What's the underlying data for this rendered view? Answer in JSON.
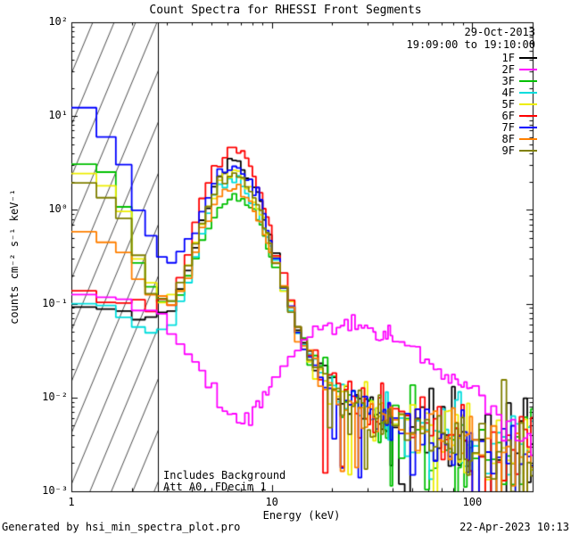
{
  "header": {
    "date": "29-Oct-2013",
    "time_range": "19:09:00 to 19:10:00"
  },
  "annotations": {
    "background": "Includes Background",
    "attenuator": "Att A0, FDecim 1"
  },
  "footer": {
    "generator": "Generated by hsi_min_spectra_plot.pro",
    "timestamp": "22-Apr-2023 10:13"
  },
  "chart_data": {
    "type": "line",
    "title": "Count Spectra for RHESSI Front Segments",
    "xlabel": "Energy (keV)",
    "ylabel": "counts cm⁻² s⁻¹ keV⁻¹",
    "x_scale": "log",
    "y_scale": "log",
    "xlim": [
      1,
      200
    ],
    "ylim": [
      0.001,
      100
    ],
    "x_ticks": [
      {
        "value": 1,
        "label": "1"
      },
      {
        "value": 10,
        "label": "10"
      },
      {
        "value": 100,
        "label": "100"
      }
    ],
    "y_ticks": [
      {
        "value": 100,
        "label": "10²"
      },
      {
        "value": 10,
        "label": "10¹"
      },
      {
        "value": 1,
        "label": "10⁰"
      },
      {
        "value": 0.1,
        "label": "10⁻¹"
      },
      {
        "value": 0.01,
        "label": "10⁻²"
      },
      {
        "value": 0.001,
        "label": "10⁻³"
      }
    ],
    "hatch_region": {
      "from": 1,
      "to": 2.7
    },
    "bins": [
      [
        1,
        10,
        0.3333
      ],
      [
        10,
        40,
        1
      ],
      [
        40,
        100,
        3
      ],
      [
        100,
        204,
        8
      ]
    ],
    "series": [
      {
        "name": "1F",
        "color": "#000000",
        "seed": 11,
        "noise": {
          "from": 12,
          "sigma": 0.32,
          "spikes": true
        },
        "anchors": [
          [
            1,
            0.105
          ],
          [
            1.3,
            0.1
          ],
          [
            1.7,
            0.09
          ],
          [
            2,
            0.085
          ],
          [
            2.4,
            0.08
          ],
          [
            2.8,
            0.075
          ],
          [
            3.2,
            0.09
          ],
          [
            3.7,
            0.18
          ],
          [
            4.3,
            0.55
          ],
          [
            5,
            1.4
          ],
          [
            5.6,
            2.5
          ],
          [
            6.3,
            3.2
          ],
          [
            7,
            3.0
          ],
          [
            8,
            1.9
          ],
          [
            9,
            1.0
          ],
          [
            10,
            0.45
          ],
          [
            12,
            0.12
          ],
          [
            14,
            0.045
          ],
          [
            17,
            0.022
          ],
          [
            20,
            0.013
          ],
          [
            25,
            0.009
          ],
          [
            30,
            0.007
          ],
          [
            40,
            0.0055
          ],
          [
            50,
            0.005
          ],
          [
            70,
            0.004
          ],
          [
            100,
            0.0035
          ],
          [
            140,
            0.003
          ],
          [
            200,
            0.0025
          ]
        ]
      },
      {
        "name": "2F",
        "color": "#ff00ff",
        "seed": 22,
        "noise": {
          "from": 20,
          "sigma": 0.09,
          "spikes": false
        },
        "anchors": [
          [
            1,
            0.13
          ],
          [
            1.3,
            0.12
          ],
          [
            1.7,
            0.105
          ],
          [
            2,
            0.095
          ],
          [
            2.4,
            0.082
          ],
          [
            2.8,
            0.07
          ],
          [
            3.2,
            0.055
          ],
          [
            3.7,
            0.038
          ],
          [
            4.3,
            0.022
          ],
          [
            5,
            0.012
          ],
          [
            5.6,
            0.008
          ],
          [
            6.3,
            0.006
          ],
          [
            7,
            0.0055
          ],
          [
            8,
            0.007
          ],
          [
            9,
            0.01
          ],
          [
            10,
            0.015
          ],
          [
            12,
            0.025
          ],
          [
            14,
            0.038
          ],
          [
            17,
            0.05
          ],
          [
            20,
            0.058
          ],
          [
            25,
            0.063
          ],
          [
            30,
            0.058
          ],
          [
            40,
            0.046
          ],
          [
            50,
            0.036
          ],
          [
            70,
            0.02
          ],
          [
            100,
            0.011
          ],
          [
            140,
            0.006
          ],
          [
            200,
            0.0032
          ]
        ]
      },
      {
        "name": "3F",
        "color": "#00c000",
        "seed": 33,
        "noise": {
          "from": 12,
          "sigma": 0.32,
          "spikes": true
        },
        "anchors": [
          [
            1,
            3.2
          ],
          [
            1.3,
            3.0
          ],
          [
            1.7,
            1.8
          ],
          [
            2,
            0.5
          ],
          [
            2.4,
            0.16
          ],
          [
            2.8,
            0.1
          ],
          [
            3.2,
            0.1
          ],
          [
            3.7,
            0.15
          ],
          [
            4.3,
            0.38
          ],
          [
            5,
            0.8
          ],
          [
            5.6,
            1.15
          ],
          [
            6.3,
            1.35
          ],
          [
            7,
            1.3
          ],
          [
            8,
            0.95
          ],
          [
            9,
            0.6
          ],
          [
            10,
            0.33
          ],
          [
            12,
            0.11
          ],
          [
            14,
            0.045
          ],
          [
            17,
            0.022
          ],
          [
            20,
            0.013
          ],
          [
            25,
            0.009
          ],
          [
            30,
            0.007
          ],
          [
            40,
            0.0055
          ],
          [
            50,
            0.0045
          ],
          [
            70,
            0.0038
          ],
          [
            100,
            0.0032
          ],
          [
            140,
            0.0028
          ],
          [
            200,
            0.0025
          ]
        ]
      },
      {
        "name": "4F",
        "color": "#00dddd",
        "seed": 44,
        "noise": {
          "from": 12,
          "sigma": 0.32,
          "spikes": true
        },
        "anchors": [
          [
            1,
            0.1
          ],
          [
            1.3,
            0.095
          ],
          [
            1.7,
            0.085
          ],
          [
            2,
            0.07
          ],
          [
            2.4,
            0.05
          ],
          [
            2.8,
            0.045
          ],
          [
            3.2,
            0.06
          ],
          [
            3.7,
            0.14
          ],
          [
            4.3,
            0.45
          ],
          [
            5,
            1.1
          ],
          [
            5.6,
            1.8
          ],
          [
            6.3,
            2.1
          ],
          [
            7,
            2.0
          ],
          [
            8,
            1.3
          ],
          [
            9,
            0.75
          ],
          [
            10,
            0.36
          ],
          [
            12,
            0.1
          ],
          [
            14,
            0.04
          ],
          [
            17,
            0.02
          ],
          [
            20,
            0.012
          ],
          [
            25,
            0.0085
          ],
          [
            30,
            0.007
          ],
          [
            40,
            0.0055
          ],
          [
            50,
            0.0045
          ],
          [
            70,
            0.0038
          ],
          [
            100,
            0.0032
          ],
          [
            140,
            0.0028
          ],
          [
            200,
            0.0024
          ]
        ]
      },
      {
        "name": "5F",
        "color": "#eded00",
        "seed": 55,
        "noise": {
          "from": 12,
          "sigma": 0.32,
          "spikes": true
        },
        "anchors": [
          [
            1,
            2.3
          ],
          [
            1.3,
            2.2
          ],
          [
            1.7,
            1.5
          ],
          [
            2,
            0.5
          ],
          [
            2.4,
            0.17
          ],
          [
            2.8,
            0.11
          ],
          [
            3.2,
            0.11
          ],
          [
            3.7,
            0.18
          ],
          [
            4.3,
            0.5
          ],
          [
            5,
            1.2
          ],
          [
            5.6,
            2.0
          ],
          [
            6.3,
            2.4
          ],
          [
            7,
            2.25
          ],
          [
            8,
            1.45
          ],
          [
            9,
            0.8
          ],
          [
            10,
            0.38
          ],
          [
            12,
            0.11
          ],
          [
            14,
            0.042
          ],
          [
            17,
            0.021
          ],
          [
            20,
            0.012
          ],
          [
            25,
            0.0085
          ],
          [
            30,
            0.007
          ],
          [
            40,
            0.0055
          ],
          [
            50,
            0.0046
          ],
          [
            70,
            0.0038
          ],
          [
            100,
            0.0033
          ],
          [
            140,
            0.0028
          ],
          [
            200,
            0.0025
          ]
        ]
      },
      {
        "name": "6F",
        "color": "#ff0000",
        "seed": 66,
        "noise": {
          "from": 12,
          "sigma": 0.32,
          "spikes": true
        },
        "anchors": [
          [
            1,
            0.12
          ],
          [
            1.3,
            0.11
          ],
          [
            1.7,
            0.1
          ],
          [
            2,
            0.09
          ],
          [
            2.4,
            0.085
          ],
          [
            2.8,
            0.08
          ],
          [
            3.2,
            0.1
          ],
          [
            3.7,
            0.25
          ],
          [
            4.3,
            0.9
          ],
          [
            5,
            2.4
          ],
          [
            5.6,
            3.9
          ],
          [
            6.3,
            4.6
          ],
          [
            7,
            4.2
          ],
          [
            8,
            2.6
          ],
          [
            9,
            1.3
          ],
          [
            10,
            0.55
          ],
          [
            12,
            0.14
          ],
          [
            14,
            0.05
          ],
          [
            17,
            0.024
          ],
          [
            20,
            0.014
          ],
          [
            25,
            0.0095
          ],
          [
            30,
            0.0075
          ],
          [
            40,
            0.006
          ],
          [
            50,
            0.005
          ],
          [
            70,
            0.0042
          ],
          [
            100,
            0.0036
          ],
          [
            140,
            0.003
          ],
          [
            200,
            0.0028
          ]
        ]
      },
      {
        "name": "7F",
        "color": "#0000ff",
        "seed": 77,
        "noise": {
          "from": 12,
          "sigma": 0.32,
          "spikes": true
        },
        "anchors": [
          [
            1,
            13
          ],
          [
            1.3,
            9.5
          ],
          [
            1.7,
            4.5
          ],
          [
            2,
            1.5
          ],
          [
            2.4,
            0.55
          ],
          [
            2.8,
            0.33
          ],
          [
            3.2,
            0.28
          ],
          [
            3.7,
            0.35
          ],
          [
            4.3,
            0.75
          ],
          [
            5,
            1.6
          ],
          [
            5.6,
            2.5
          ],
          [
            6.3,
            3.0
          ],
          [
            7,
            2.8
          ],
          [
            8,
            1.8
          ],
          [
            9,
            1.0
          ],
          [
            10,
            0.45
          ],
          [
            12,
            0.12
          ],
          [
            14,
            0.045
          ],
          [
            17,
            0.022
          ],
          [
            20,
            0.013
          ],
          [
            25,
            0.009
          ],
          [
            30,
            0.007
          ],
          [
            40,
            0.0055
          ],
          [
            50,
            0.0045
          ],
          [
            70,
            0.0038
          ],
          [
            100,
            0.0032
          ],
          [
            140,
            0.0028
          ],
          [
            200,
            0.0025
          ]
        ]
      },
      {
        "name": "8F",
        "color": "#ff8000",
        "seed": 88,
        "noise": {
          "from": 12,
          "sigma": 0.32,
          "spikes": true
        },
        "anchors": [
          [
            1,
            0.62
          ],
          [
            1.3,
            0.58
          ],
          [
            1.7,
            0.42
          ],
          [
            2,
            0.25
          ],
          [
            2.4,
            0.14
          ],
          [
            2.8,
            0.1
          ],
          [
            3.2,
            0.11
          ],
          [
            3.7,
            0.17
          ],
          [
            4.3,
            0.42
          ],
          [
            5,
            0.95
          ],
          [
            5.6,
            1.5
          ],
          [
            6.3,
            1.75
          ],
          [
            7,
            1.65
          ],
          [
            8,
            1.1
          ],
          [
            9,
            0.65
          ],
          [
            10,
            0.32
          ],
          [
            12,
            0.1
          ],
          [
            14,
            0.04
          ],
          [
            17,
            0.02
          ],
          [
            20,
            0.012
          ],
          [
            25,
            0.0085
          ],
          [
            30,
            0.007
          ],
          [
            40,
            0.0055
          ],
          [
            50,
            0.0046
          ],
          [
            70,
            0.0038
          ],
          [
            100,
            0.0033
          ],
          [
            140,
            0.0028
          ],
          [
            200,
            0.0025
          ]
        ]
      },
      {
        "name": "9F",
        "color": "#808000",
        "seed": 99,
        "noise": {
          "from": 12,
          "sigma": 0.32,
          "spikes": true
        },
        "anchors": [
          [
            1,
            1.9
          ],
          [
            1.3,
            1.8
          ],
          [
            1.7,
            1.1
          ],
          [
            2,
            0.4
          ],
          [
            2.4,
            0.15
          ],
          [
            2.8,
            0.1
          ],
          [
            3.2,
            0.11
          ],
          [
            3.7,
            0.2
          ],
          [
            4.3,
            0.55
          ],
          [
            5,
            1.3
          ],
          [
            5.6,
            2.1
          ],
          [
            6.3,
            2.5
          ],
          [
            7,
            2.35
          ],
          [
            8,
            1.5
          ],
          [
            9,
            0.85
          ],
          [
            10,
            0.4
          ],
          [
            12,
            0.11
          ],
          [
            14,
            0.043
          ],
          [
            17,
            0.021
          ],
          [
            20,
            0.012
          ],
          [
            25,
            0.0088
          ],
          [
            30,
            0.0072
          ],
          [
            40,
            0.0056
          ],
          [
            50,
            0.0046
          ],
          [
            70,
            0.0039
          ],
          [
            100,
            0.0033
          ],
          [
            140,
            0.0028
          ],
          [
            200,
            0.0025
          ]
        ]
      }
    ]
  }
}
